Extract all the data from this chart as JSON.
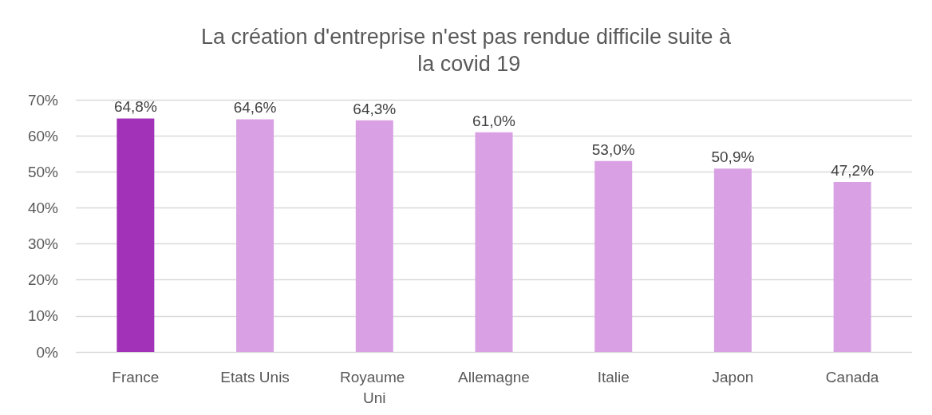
{
  "chart_data": {
    "type": "bar",
    "title": "La création d'entreprise n'est pas rendue difficile suite à la covid 19",
    "categories": [
      "France",
      "Etats Unis",
      "Royaume Uni",
      "Allemagne",
      "Italie",
      "Japon",
      "Canada"
    ],
    "values": [
      64.8,
      64.6,
      64.3,
      61.0,
      53.0,
      50.9,
      47.2
    ],
    "colors": [
      "#a233b8",
      "#d9a0e3",
      "#d9a0e3",
      "#d9a0e3",
      "#d9a0e3",
      "#d9a0e3",
      "#d9a0e3"
    ],
    "value_labels": [
      "64,8%",
      "64,6%",
      "64,3%",
      "61,0%",
      "53,0%",
      "50,9%",
      "47,2%"
    ],
    "ylim": [
      0,
      70
    ],
    "yticks": [
      {
        "value": 0,
        "label": "0%"
      },
      {
        "value": 10,
        "label": "10%"
      },
      {
        "value": 20,
        "label": "20%"
      },
      {
        "value": 30,
        "label": "30%"
      },
      {
        "value": 40,
        "label": "40%"
      },
      {
        "value": 50,
        "label": "50%"
      },
      {
        "value": 60,
        "label": "60%"
      },
      {
        "value": 70,
        "label": "70%"
      }
    ],
    "grid": "y"
  }
}
